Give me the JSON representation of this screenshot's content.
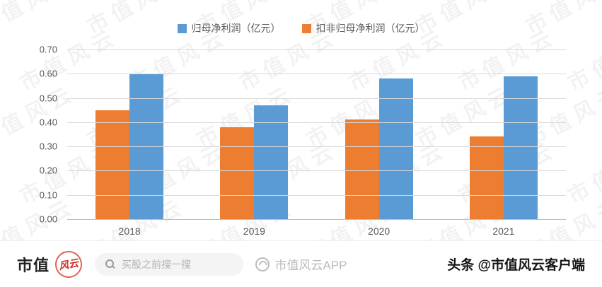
{
  "watermark": {
    "text": "市值风云"
  },
  "chart_data": {
    "type": "bar",
    "categories": [
      "2018",
      "2019",
      "2020",
      "2021"
    ],
    "series": [
      {
        "name": "扣非归母净利润（亿元）",
        "color": "#ED7D31",
        "values": [
          0.45,
          0.38,
          0.41,
          0.34
        ]
      },
      {
        "name": "归母净利润（亿元）",
        "color": "#5B9BD5",
        "values": [
          0.6,
          0.47,
          0.58,
          0.59
        ]
      }
    ],
    "legend": [
      {
        "label": "归母净利润（亿元）",
        "color": "#5B9BD5"
      },
      {
        "label": "扣非归母净利润（亿元）",
        "color": "#ED7D31"
      }
    ],
    "title": "",
    "xlabel": "",
    "ylabel": "",
    "ylim": [
      0,
      0.7
    ],
    "ytick_step": 0.1,
    "ytick_decimals": 2,
    "grid": true,
    "legend_position": "top"
  },
  "footer": {
    "logo_black": "市值",
    "logo_red": "风云",
    "search_placeholder": "买股之前搜一搜",
    "center_text": "市值风云APP",
    "right_text": "头条 @市值风云客户端"
  }
}
